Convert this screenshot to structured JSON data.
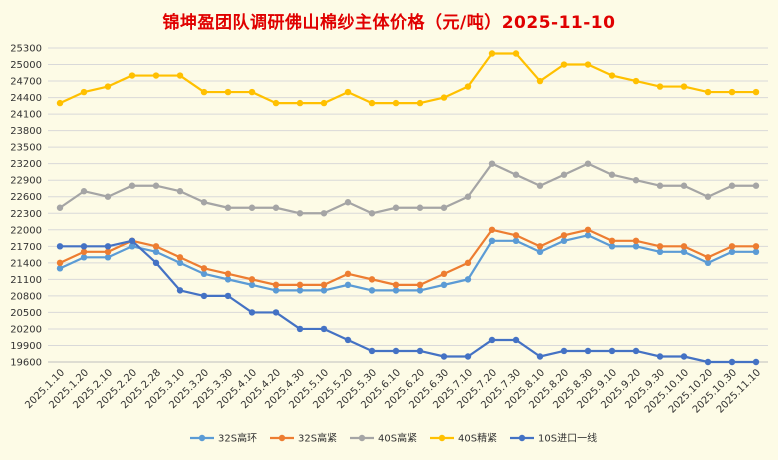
{
  "chart_data": {
    "type": "line",
    "title": "锦坤盈团队调研佛山棉纱主体价格（元/吨）2025-11-10",
    "xlabel": "",
    "ylabel": "",
    "ylim": [
      19600,
      25300
    ],
    "y_ticks": [
      "19600",
      "19900",
      "20200",
      "20500",
      "20800",
      "21100",
      "21400",
      "21700",
      "22000",
      "22300",
      "22600",
      "22900",
      "23200",
      "23500",
      "23800",
      "24100",
      "24400",
      "24700",
      "25000",
      "25300"
    ],
    "grid": true,
    "legend_position": "bottom",
    "x": [
      "2025.1.10",
      "2025.1.20",
      "2025.2.10",
      "2025.2.20",
      "2025.2.28",
      "2025.3.10",
      "2025.3.20",
      "2025.3.30",
      "2025.4.10",
      "2025.4.20",
      "2025.4.30",
      "2025.5.10",
      "2025.5.20",
      "2025.5.30",
      "2025.6.10",
      "2025.6.20",
      "2025.6.30",
      "2025.7.10",
      "2025.7.20",
      "2025.7.30",
      "2025.8.10",
      "2025.8.20",
      "2025.8.30",
      "2025.9.10",
      "2025.9.20",
      "2025.9.30",
      "2025.10.10",
      "2025.10.20",
      "2025.10.30",
      "2025.11.10"
    ],
    "series": [
      {
        "name": "32S高环",
        "color": "#5b9bd5",
        "values": [
          21300,
          21500,
          21500,
          21700,
          21600,
          21400,
          21200,
          21100,
          21000,
          20900,
          20900,
          20900,
          21000,
          20900,
          20900,
          20900,
          21000,
          21100,
          21800,
          21800,
          21600,
          21800,
          21900,
          21700,
          21700,
          21600,
          21600,
          21400,
          21600,
          21600
        ]
      },
      {
        "name": "32S高紧",
        "color": "#ed7d31",
        "values": [
          21400,
          21600,
          21600,
          21800,
          21700,
          21500,
          21300,
          21200,
          21100,
          21000,
          21000,
          21000,
          21200,
          21100,
          21000,
          21000,
          21200,
          21400,
          22000,
          21900,
          21700,
          21900,
          22000,
          21800,
          21800,
          21700,
          21700,
          21500,
          21700,
          21700
        ]
      },
      {
        "name": "40S高紧",
        "color": "#a5a5a5",
        "values": [
          22400,
          22700,
          22600,
          22800,
          22800,
          22700,
          22500,
          22400,
          22400,
          22400,
          22300,
          22300,
          22500,
          22300,
          22400,
          22400,
          22400,
          22600,
          23200,
          23000,
          22800,
          23000,
          23200,
          23000,
          22900,
          22800,
          22800,
          22600,
          22800,
          22800
        ]
      },
      {
        "name": "40S精紧",
        "color": "#ffc000",
        "values": [
          24300,
          24500,
          24600,
          24800,
          24800,
          24800,
          24500,
          24500,
          24500,
          24300,
          24300,
          24300,
          24500,
          24300,
          24300,
          24300,
          24400,
          24600,
          25200,
          25200,
          24700,
          25000,
          25000,
          24800,
          24700,
          24600,
          24600,
          24500,
          24500,
          24500
        ]
      },
      {
        "name": "10S进口一线",
        "color": "#4472c4",
        "values": [
          21700,
          21700,
          21700,
          21800,
          21400,
          20900,
          20800,
          20800,
          20500,
          20500,
          20200,
          20200,
          20000,
          19800,
          19800,
          19800,
          19700,
          19700,
          20000,
          20000,
          19700,
          19800,
          19800,
          19800,
          19800,
          19700,
          19700,
          19600,
          19600,
          19600
        ]
      }
    ]
  }
}
